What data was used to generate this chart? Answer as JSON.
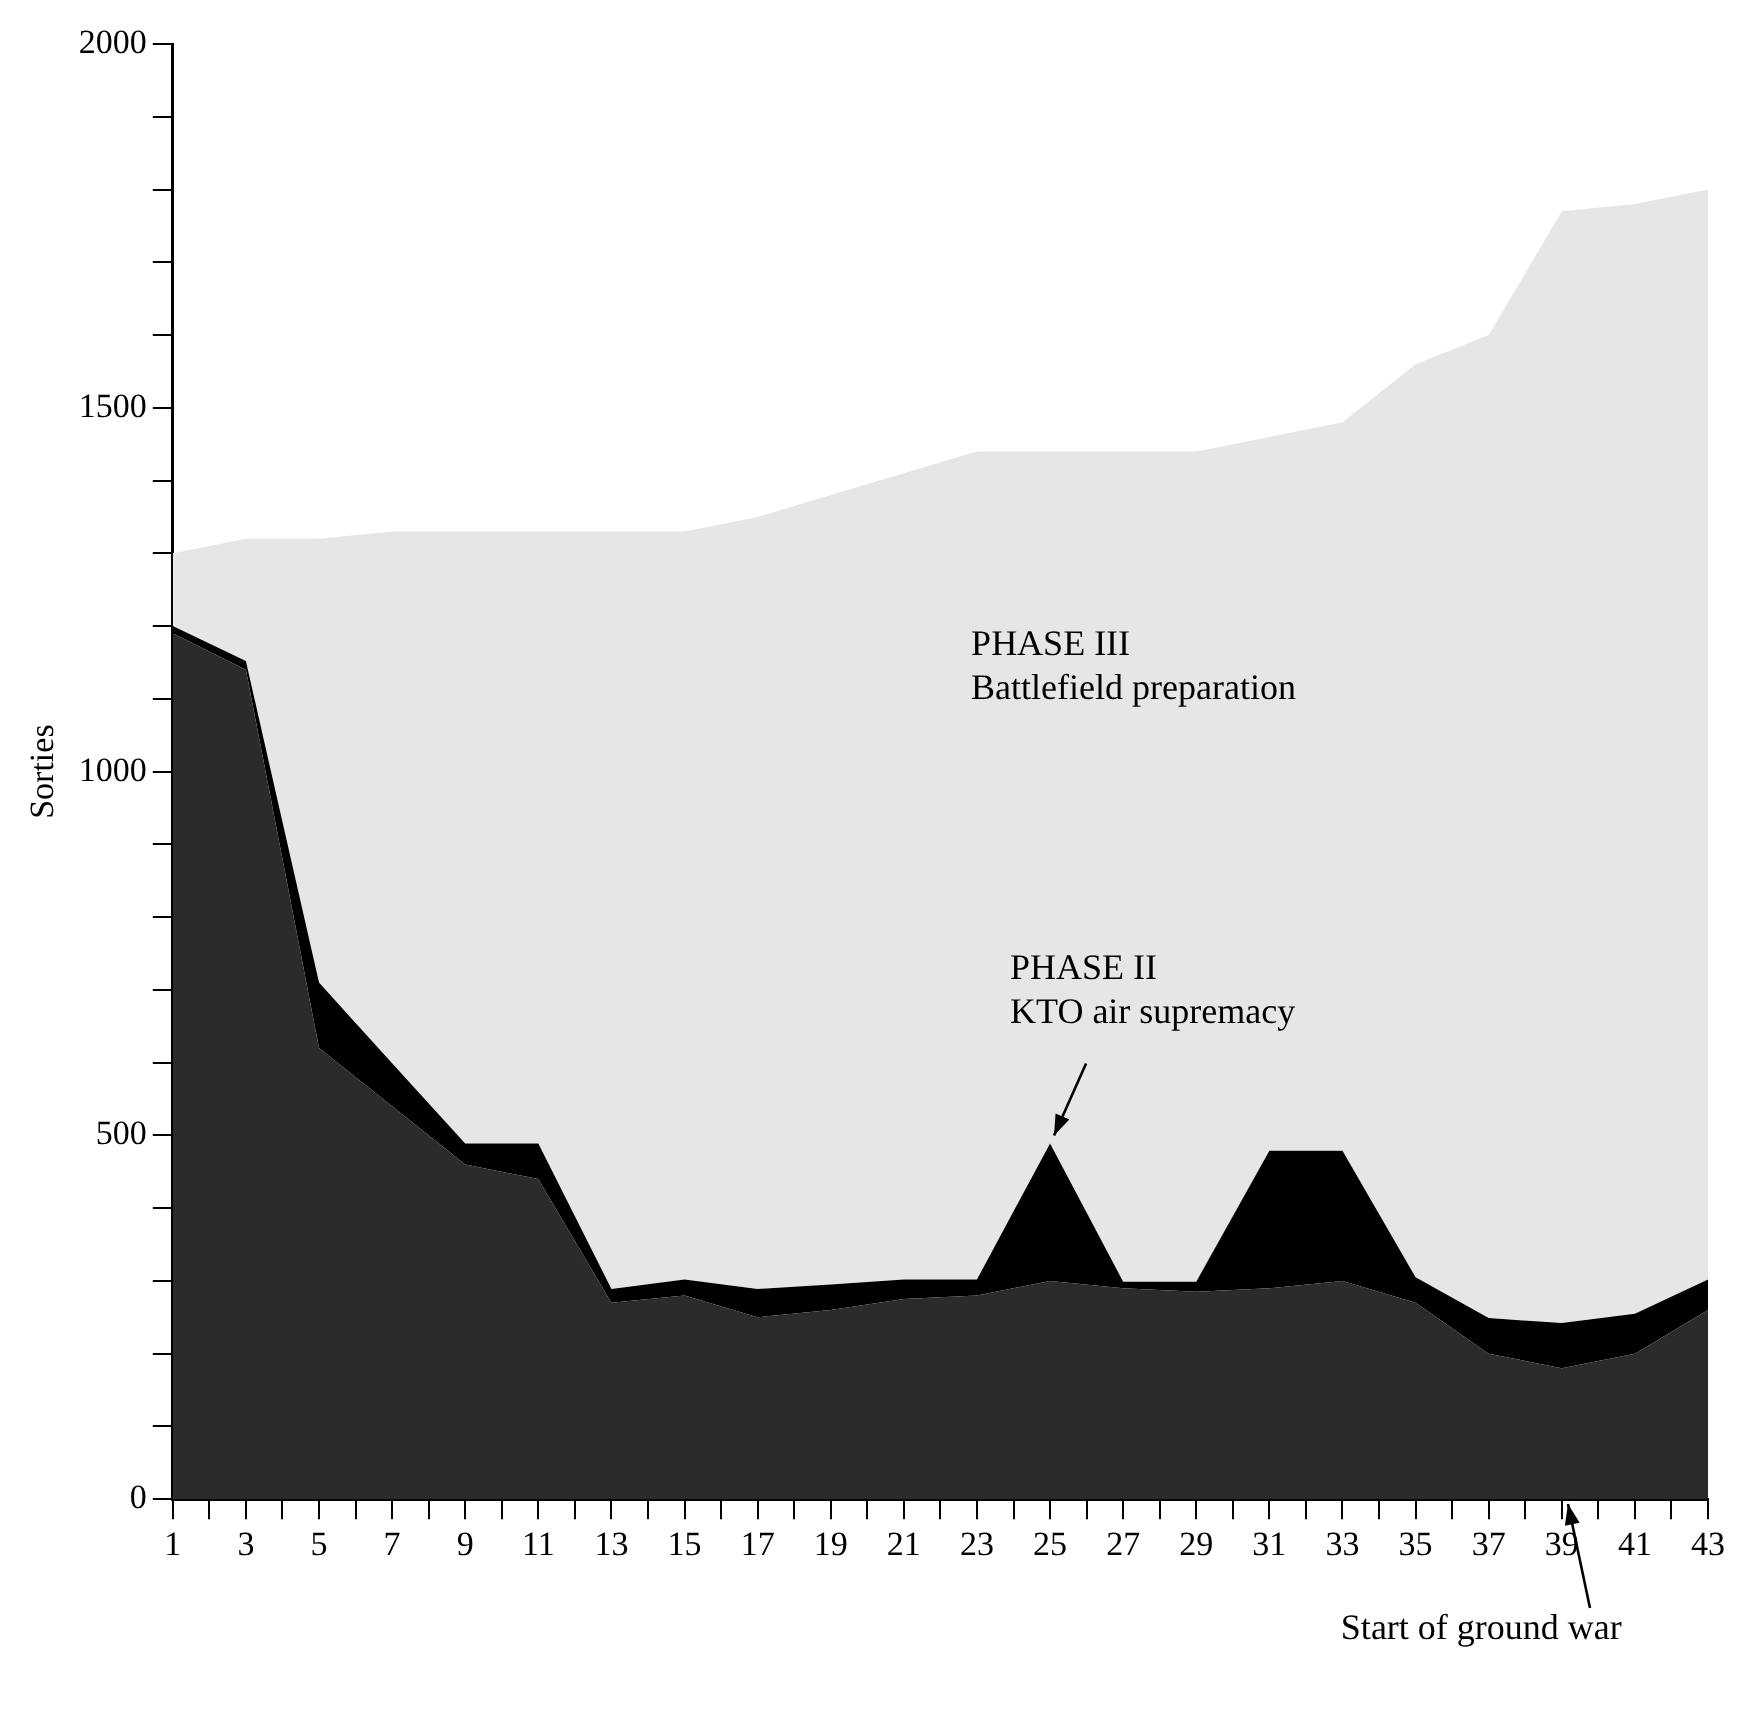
{
  "chart_data": {
    "type": "area",
    "stacked": true,
    "ylabel": "Sorties",
    "x": [
      1,
      3,
      5,
      7,
      9,
      11,
      13,
      15,
      17,
      19,
      21,
      23,
      25,
      27,
      29,
      31,
      33,
      35,
      37,
      39,
      41,
      43
    ],
    "series": [
      {
        "color": "#2b2b2b",
        "values": [
          1190,
          1140,
          620,
          540,
          460,
          440,
          270,
          280,
          250,
          260,
          275,
          280,
          300,
          290,
          285,
          290,
          300,
          270,
          200,
          180,
          200,
          260
        ]
      },
      {
        "color": "#000000",
        "values": [
          10,
          12,
          90,
          59,
          29,
          49,
          19,
          22,
          39,
          35,
          27,
          22,
          189,
          9,
          14,
          189,
          179,
          35,
          49,
          62,
          55,
          42
        ]
      },
      {
        "color": "#e6e6e6",
        "values": [
          100,
          168,
          610,
          731,
          841,
          841,
          1041,
          1028,
          1061,
          1085,
          1108,
          1138,
          951,
          1141,
          1141,
          981,
          1001,
          1255,
          1351,
          1528,
          1525,
          1498
        ]
      }
    ],
    "xlim": [
      1,
      43
    ],
    "xticks": [
      1,
      {
        "value": 2,
        "label": null
      },
      3,
      {
        "value": 4,
        "label": null
      },
      5,
      {
        "value": 6,
        "label": null
      },
      7,
      {
        "value": 8,
        "label": null
      },
      9,
      {
        "value": 10,
        "label": null
      },
      11,
      {
        "value": 12,
        "label": null
      },
      13,
      {
        "value": 14,
        "label": null
      },
      15,
      {
        "value": 16,
        "label": null
      },
      17,
      {
        "value": 18,
        "label": null
      },
      19,
      {
        "value": 20,
        "label": null
      },
      21,
      {
        "value": 22,
        "label": null
      },
      23,
      {
        "value": 24,
        "label": null
      },
      25,
      {
        "value": 26,
        "label": null
      },
      27,
      {
        "value": 28,
        "label": null
      },
      29,
      {
        "value": 30,
        "label": null
      },
      31,
      {
        "value": 32,
        "label": null
      },
      33,
      {
        "value": 34,
        "label": null
      },
      35,
      {
        "value": 36,
        "label": null
      },
      37,
      {
        "value": 38,
        "label": null
      },
      39,
      {
        "value": 40,
        "label": null
      },
      41,
      {
        "value": 42,
        "label": null
      },
      43
    ],
    "ylim": [
      0,
      2000
    ],
    "yticks": [
      0,
      {
        "value": 100,
        "label": null
      },
      {
        "value": 200,
        "label": null
      },
      {
        "value": 300,
        "label": null
      },
      {
        "value": 400,
        "label": null
      },
      500,
      {
        "value": 600,
        "label": null
      },
      {
        "value": 700,
        "label": null
      },
      {
        "value": 800,
        "label": null
      },
      {
        "value": 900,
        "label": null
      },
      1000,
      {
        "value": 1100,
        "label": null
      },
      {
        "value": 1200,
        "label": null
      },
      {
        "value": 1300,
        "label": null
      },
      {
        "value": 1400,
        "label": null
      },
      1500,
      {
        "value": 1600,
        "label": null
      },
      {
        "value": 1700,
        "label": null
      },
      {
        "value": 1800,
        "label": null
      },
      {
        "value": 1900,
        "label": null
      },
      2000
    ],
    "annotations": [
      "PHASE III\nBattlefield preparation",
      {
        "text": "PHASE II\nKTO air supremacy",
        "x": 25,
        "y": 489
      },
      {
        "text": "Start of ground war",
        "x": 39,
        "y": 0
      }
    ]
  }
}
